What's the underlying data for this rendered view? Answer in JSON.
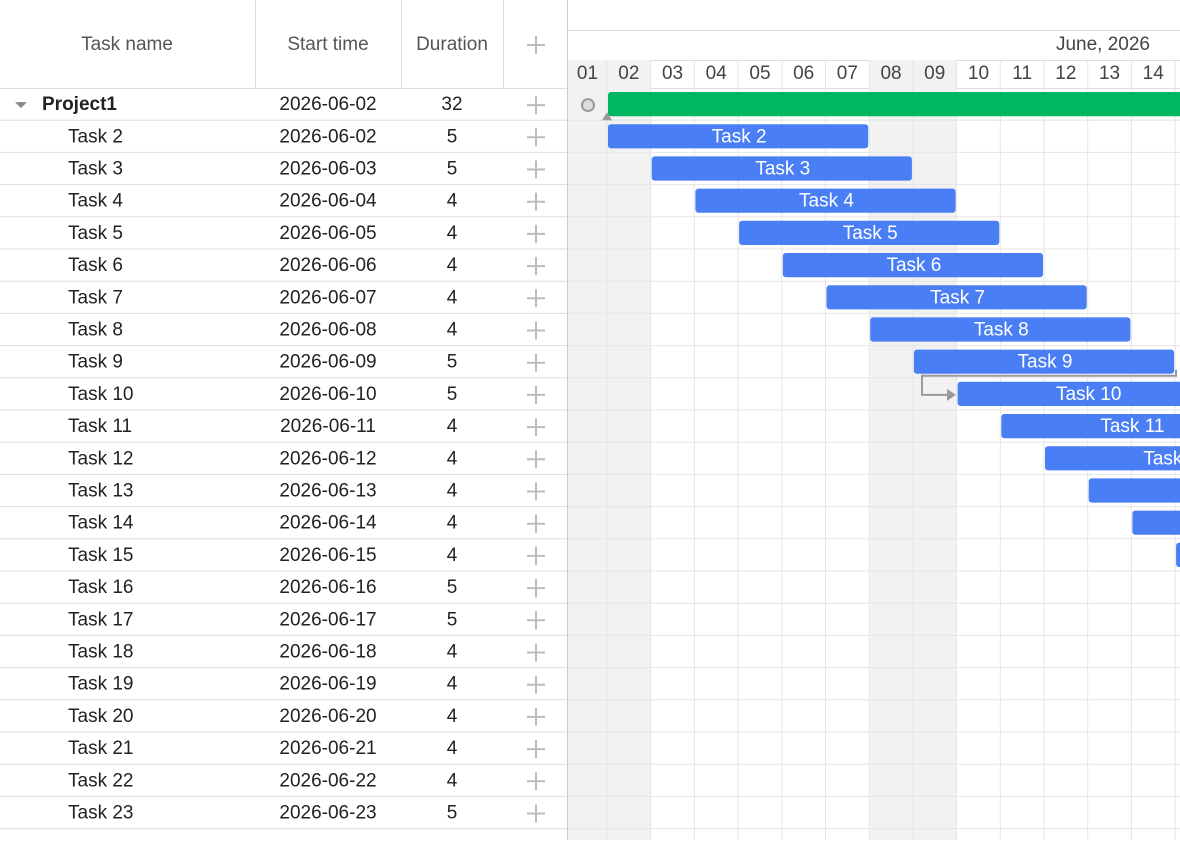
{
  "grid": {
    "columns": [
      "Task name",
      "Start time",
      "Duration"
    ],
    "rows": [
      {
        "name": "Project1",
        "start": "2026-06-02",
        "duration": 32
      },
      {
        "name": "Task 2",
        "start": "2026-06-02",
        "duration": 5
      },
      {
        "name": "Task 3",
        "start": "2026-06-03",
        "duration": 5
      },
      {
        "name": "Task 4",
        "start": "2026-06-04",
        "duration": 4
      },
      {
        "name": "Task 5",
        "start": "2026-06-05",
        "duration": 4
      },
      {
        "name": "Task 6",
        "start": "2026-06-06",
        "duration": 4
      },
      {
        "name": "Task 7",
        "start": "2026-06-07",
        "duration": 4
      },
      {
        "name": "Task 8",
        "start": "2026-06-08",
        "duration": 4
      },
      {
        "name": "Task 9",
        "start": "2026-06-09",
        "duration": 5
      },
      {
        "name": "Task 10",
        "start": "2026-06-10",
        "duration": 5
      },
      {
        "name": "Task 11",
        "start": "2026-06-11",
        "duration": 4
      },
      {
        "name": "Task 12",
        "start": "2026-06-12",
        "duration": 4
      },
      {
        "name": "Task 13",
        "start": "2026-06-13",
        "duration": 4
      },
      {
        "name": "Task 14",
        "start": "2026-06-14",
        "duration": 4
      },
      {
        "name": "Task 15",
        "start": "2026-06-15",
        "duration": 4
      },
      {
        "name": "Task 16",
        "start": "2026-06-16",
        "duration": 5
      },
      {
        "name": "Task 17",
        "start": "2026-06-17",
        "duration": 5
      },
      {
        "name": "Task 18",
        "start": "2026-06-18",
        "duration": 4
      },
      {
        "name": "Task 19",
        "start": "2026-06-19",
        "duration": 4
      },
      {
        "name": "Task 20",
        "start": "2026-06-20",
        "duration": 4
      },
      {
        "name": "Task 21",
        "start": "2026-06-21",
        "duration": 4
      },
      {
        "name": "Task 22",
        "start": "2026-06-22",
        "duration": 4
      },
      {
        "name": "Task 23",
        "start": "2026-06-23",
        "duration": 5
      }
    ]
  },
  "timeline": {
    "month": "June, 2026",
    "days": [
      "01",
      "02",
      "03",
      "04",
      "05",
      "06",
      "07",
      "08",
      "09",
      "10",
      "11",
      "12",
      "13",
      "14"
    ]
  }
}
